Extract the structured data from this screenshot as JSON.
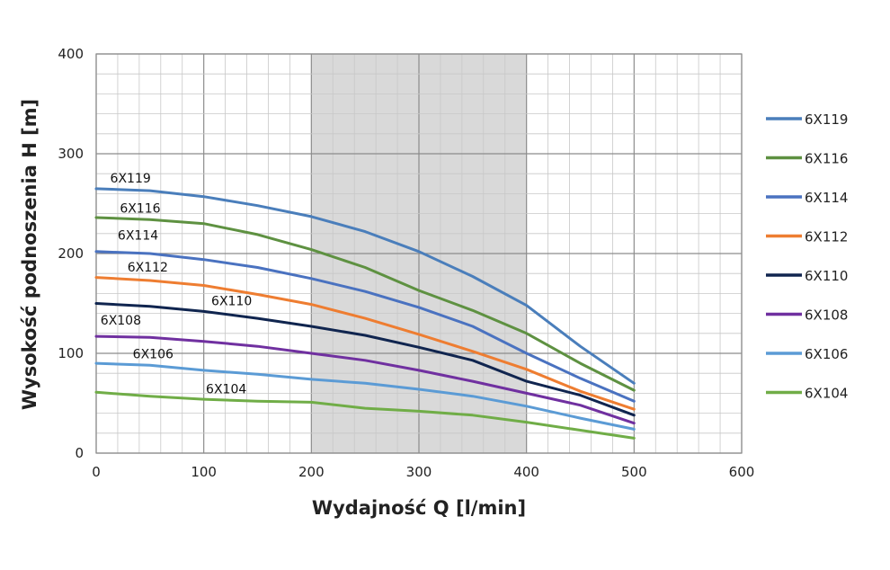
{
  "chart_data": {
    "type": "line",
    "title": "",
    "xlabel": "Wydajność Q [l/min]",
    "ylabel": "Wysokość podnoszenia H [m]",
    "xlim": [
      0,
      600
    ],
    "ylim": [
      0,
      400
    ],
    "x_ticks": [
      0,
      100,
      200,
      300,
      400,
      500,
      600
    ],
    "y_ticks": [
      0,
      100,
      200,
      300,
      400
    ],
    "grid": true,
    "legend_position": "right",
    "highlight_band": {
      "x_from": 200,
      "x_to": 400,
      "color": "#d9d9d9"
    },
    "series": [
      {
        "name": "6X119",
        "color": "#4a7ebb",
        "points": [
          [
            0,
            265
          ],
          [
            50,
            263
          ],
          [
            100,
            257
          ],
          [
            150,
            248
          ],
          [
            200,
            237
          ],
          [
            250,
            222
          ],
          [
            300,
            202
          ],
          [
            350,
            177
          ],
          [
            400,
            148
          ],
          [
            450,
            107
          ],
          [
            500,
            70
          ]
        ]
      },
      {
        "name": "6X116",
        "color": "#5e9141",
        "points": [
          [
            0,
            236
          ],
          [
            50,
            234
          ],
          [
            100,
            230
          ],
          [
            150,
            219
          ],
          [
            200,
            204
          ],
          [
            250,
            186
          ],
          [
            300,
            163
          ],
          [
            350,
            143
          ],
          [
            400,
            120
          ],
          [
            450,
            90
          ],
          [
            500,
            63
          ]
        ]
      },
      {
        "name": "6X114",
        "color": "#4a72c0",
        "points": [
          [
            0,
            202
          ],
          [
            50,
            200
          ],
          [
            100,
            194
          ],
          [
            150,
            186
          ],
          [
            200,
            175
          ],
          [
            250,
            162
          ],
          [
            300,
            146
          ],
          [
            350,
            127
          ],
          [
            400,
            100
          ],
          [
            450,
            75
          ],
          [
            500,
            52
          ]
        ]
      },
      {
        "name": "6X112",
        "color": "#ee7d31",
        "points": [
          [
            0,
            176
          ],
          [
            50,
            173
          ],
          [
            100,
            168
          ],
          [
            150,
            159
          ],
          [
            200,
            149
          ],
          [
            250,
            135
          ],
          [
            300,
            119
          ],
          [
            350,
            102
          ],
          [
            400,
            84
          ],
          [
            450,
            62
          ],
          [
            500,
            44
          ]
        ]
      },
      {
        "name": "6X110",
        "color": "#10254f",
        "points": [
          [
            0,
            150
          ],
          [
            50,
            147
          ],
          [
            100,
            142
          ],
          [
            150,
            135
          ],
          [
            200,
            127
          ],
          [
            250,
            118
          ],
          [
            300,
            106
          ],
          [
            350,
            93
          ],
          [
            400,
            72
          ],
          [
            450,
            58
          ],
          [
            500,
            38
          ]
        ]
      },
      {
        "name": "6X108",
        "color": "#7030a0",
        "points": [
          [
            0,
            117
          ],
          [
            50,
            116
          ],
          [
            100,
            112
          ],
          [
            150,
            107
          ],
          [
            200,
            100
          ],
          [
            250,
            93
          ],
          [
            300,
            83
          ],
          [
            350,
            72
          ],
          [
            400,
            60
          ],
          [
            450,
            48
          ],
          [
            500,
            30
          ]
        ]
      },
      {
        "name": "6X106",
        "color": "#5b9bd5",
        "points": [
          [
            0,
            90
          ],
          [
            50,
            88
          ],
          [
            100,
            83
          ],
          [
            150,
            79
          ],
          [
            200,
            74
          ],
          [
            250,
            70
          ],
          [
            300,
            64
          ],
          [
            350,
            57
          ],
          [
            400,
            47
          ],
          [
            450,
            35
          ],
          [
            500,
            24
          ]
        ]
      },
      {
        "name": "6X104",
        "color": "#70ad47",
        "points": [
          [
            0,
            61
          ],
          [
            50,
            57
          ],
          [
            100,
            54
          ],
          [
            150,
            52
          ],
          [
            200,
            51
          ],
          [
            250,
            45
          ],
          [
            300,
            42
          ],
          [
            350,
            38
          ],
          [
            400,
            31
          ],
          [
            450,
            23
          ],
          [
            500,
            15
          ]
        ]
      }
    ],
    "annotations": [
      {
        "text": "6X119",
        "x": 13,
        "y": 271
      },
      {
        "text": "6X116",
        "x": 22,
        "y": 241
      },
      {
        "text": "6X114",
        "x": 20,
        "y": 214
      },
      {
        "text": "6X112",
        "x": 29,
        "y": 182
      },
      {
        "text": "6X110",
        "x": 107,
        "y": 148
      },
      {
        "text": "6X108",
        "x": 4,
        "y": 129
      },
      {
        "text": "6X106",
        "x": 34,
        "y": 95
      },
      {
        "text": "6X104",
        "x": 102,
        "y": 60
      }
    ]
  }
}
